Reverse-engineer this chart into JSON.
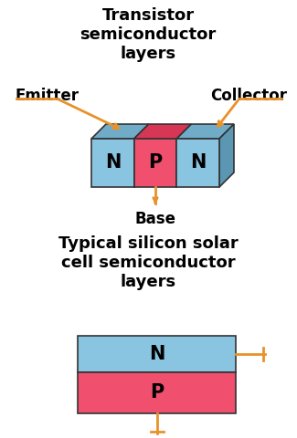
{
  "bg_color": "#ffffff",
  "title1": "Transistor\nsemiconductor\nlayers",
  "title2": "Typical silicon solar\ncell semiconductor\nlayers",
  "n_color": "#89C4E1",
  "p_color": "#F0506E",
  "edge_color": "#333333",
  "arrow_color": "#E8922A",
  "label_color": "#000000",
  "emitter_label": "Emitter",
  "collector_label": "Collector",
  "base_label": "Base",
  "font_size_title": 13,
  "font_size_label": 12,
  "font_size_block": 15,
  "fig_w": 3.25,
  "fig_h": 4.8,
  "dpi": 100
}
